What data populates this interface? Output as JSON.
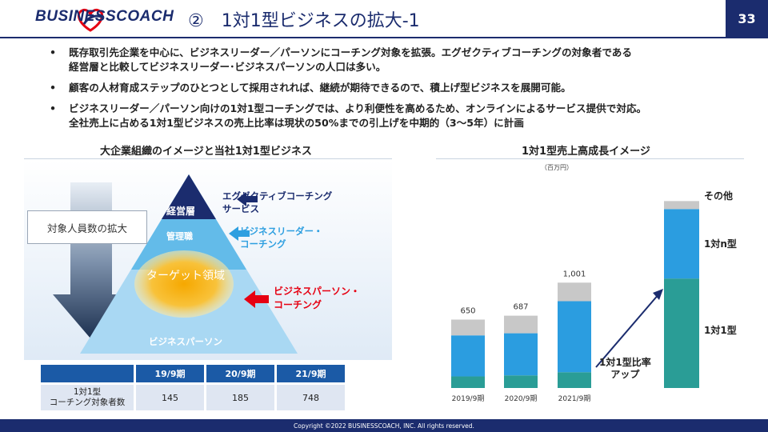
{
  "header": {
    "logo_text": "BUSINESSCOACH",
    "title": "②　1対1型ビジネスの拡大-1",
    "page_number": "33"
  },
  "bullets": [
    {
      "lines": [
        "既存取引先企業を中心に、ビジネスリーダー／パーソンにコーチング対象を拡張。エグゼクティブコーチングの対象者である",
        "経営層と比較してビジネスリーダー･ビジネスパーソンの人口は多い。"
      ]
    },
    {
      "lines": [
        "顧客の人材育成ステップのひとつとして採用されれば、継続が期待できるので、積上げ型ビジネスを展開可能。"
      ]
    },
    {
      "lines": [
        "ビジネスリーダー／パーソン向けの1対1型コーチングでは、より利便性を高めるため、オンラインによるサービス提供で対応。",
        "全社売上に占める1対1型ビジネスの売上比率は現状の50%までの引上げを中期的（3～5年）に計画"
      ]
    }
  ],
  "bullet_marker": "•",
  "left_section": {
    "title": "大企業組織のイメージと当社1対1型ビジネス",
    "arrow_label": "対象人員数の拡大",
    "pyramid": {
      "top": "経営層",
      "middle": "管理職",
      "target": "ターゲット領域",
      "bottom": "ビジネスパーソン"
    },
    "callouts": {
      "executive": [
        "エグゼクティブコーチング",
        "サービス"
      ],
      "leader": [
        "ビジネスリーダー・",
        "コーチング"
      ],
      "person": [
        "ビジネスパーソン・",
        "コーチング"
      ]
    },
    "colors": {
      "executive": "#1b2c6e",
      "leader": "#2e9fe0",
      "person": "#e60012"
    },
    "table": {
      "columns": [
        "19/9期",
        "20/9期",
        "21/9期"
      ],
      "row_label": [
        "1対1型",
        "コーチング対象者数"
      ],
      "values": [
        "145",
        "185",
        "748"
      ]
    }
  },
  "right_section": {
    "title": "1対1型売上高成長イメージ",
    "unit": "（百万円）",
    "annotation": [
      "1対1型比率",
      "アップ"
    ],
    "chart_data": {
      "type": "bar",
      "stacked": true,
      "categories": [
        "2019/9期",
        "2020/9期",
        "2021/9期",
        ""
      ],
      "totals": [
        "650",
        "687",
        "1,001",
        ""
      ],
      "series": [
        {
          "name": "1対1型",
          "color": "#2a9d96",
          "values": [
            110,
            120,
            150,
            1040
          ]
        },
        {
          "name": "1対n型",
          "color": "#2b9de0",
          "values": [
            390,
            400,
            675,
            660
          ]
        },
        {
          "name": "その他",
          "color": "#c8c8c8",
          "values": [
            150,
            167,
            176,
            76
          ]
        }
      ],
      "ylim": [
        0,
        1900
      ],
      "grid": false,
      "legend": "right"
    }
  },
  "footer": {
    "copyright": "Copyright ©2022 BUSINESSCOACH, INC. All rights reserved."
  }
}
